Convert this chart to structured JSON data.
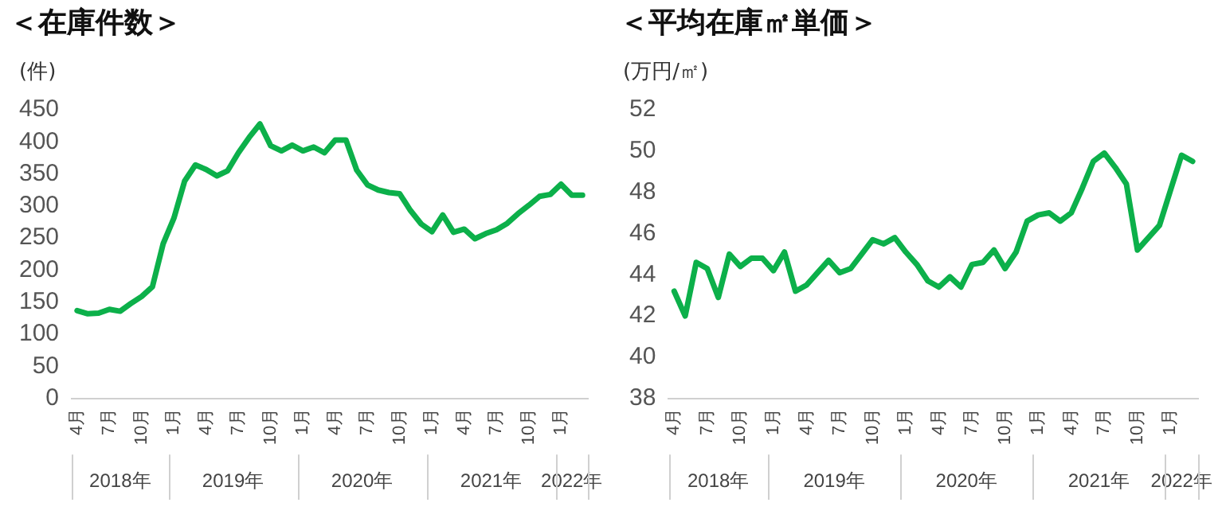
{
  "chart_data": [
    {
      "type": "line",
      "title": "＜在庫件数＞",
      "ylabel": "(件)",
      "x": [
        "2018-04",
        "2018-05",
        "2018-06",
        "2018-07",
        "2018-08",
        "2018-09",
        "2018-10",
        "2018-11",
        "2018-12",
        "2019-01",
        "2019-02",
        "2019-03",
        "2019-04",
        "2019-05",
        "2019-06",
        "2019-07",
        "2019-08",
        "2019-09",
        "2019-10",
        "2019-11",
        "2019-12",
        "2020-01",
        "2020-02",
        "2020-03",
        "2020-04",
        "2020-05",
        "2020-06",
        "2020-07",
        "2020-08",
        "2020-09",
        "2020-10",
        "2020-11",
        "2020-12",
        "2021-01",
        "2021-02",
        "2021-03",
        "2021-04",
        "2021-05",
        "2021-06",
        "2021-07",
        "2021-08",
        "2021-09",
        "2021-10",
        "2021-11",
        "2021-12",
        "2022-01",
        "2022-02",
        "2022-03"
      ],
      "series": [
        {
          "color": "#0cb04a",
          "values": [
            137,
            132,
            133,
            139,
            136,
            148,
            159,
            174,
            241,
            281,
            339,
            364,
            357,
            347,
            355,
            383,
            407,
            428,
            394,
            386,
            395,
            386,
            392,
            383,
            403,
            403,
            356,
            333,
            325,
            321,
            319,
            293,
            272,
            260,
            286,
            259,
            264,
            249,
            257,
            263,
            273,
            288,
            301,
            315,
            318,
            334,
            317,
            317
          ]
        }
      ],
      "ylim": [
        0,
        450
      ],
      "yticks": [
        0,
        50,
        100,
        150,
        200,
        250,
        300,
        350,
        400,
        450
      ],
      "line_style": "solid",
      "marker": "none",
      "xlim": [
        "2018-03-16",
        "2022-03-16"
      ],
      "xticks": [
        {
          "value": "2018-04",
          "label": "4月"
        },
        {
          "value": "2018-07",
          "label": "7月"
        },
        {
          "value": "2018-10",
          "label": "10月"
        },
        {
          "value": "2019-01",
          "label": "1月"
        },
        {
          "value": "2019-04",
          "label": "4月"
        },
        {
          "value": "2019-07",
          "label": "7月"
        },
        {
          "value": "2019-10",
          "label": "10月"
        },
        {
          "value": "2020-01",
          "label": "1月"
        },
        {
          "value": "2020-04",
          "label": "4月"
        },
        {
          "value": "2020-07",
          "label": "7月"
        },
        {
          "value": "2020-10",
          "label": "10月"
        },
        {
          "value": "2021-01",
          "label": "1月"
        },
        {
          "value": "2021-04",
          "label": "4月"
        },
        {
          "value": "2021-07",
          "label": "7月"
        },
        {
          "value": "2021-10",
          "label": "10月"
        },
        {
          "value": "2022-01",
          "label": "1月"
        }
      ],
      "x2lim": [
        "2018-03-16",
        "2022-03-16"
      ],
      "x2ticks": [
        {
          "value": "2018-08",
          "label": "2018年"
        },
        {
          "value": "2019-06-16",
          "label": "2019年"
        },
        {
          "value": "2020-06-16",
          "label": "2020年"
        },
        {
          "value": "2021-06-16",
          "label": "2021年"
        },
        {
          "value": "2022-02",
          "label": "2022年"
        }
      ]
    },
    {
      "type": "line",
      "title": "＜平均在庫㎡単価＞",
      "ylabel": "(万円/㎡)",
      "x": [
        "2018-04",
        "2018-05",
        "2018-06",
        "2018-07",
        "2018-08",
        "2018-09",
        "2018-10",
        "2018-11",
        "2018-12",
        "2019-01",
        "2019-02",
        "2019-03",
        "2019-04",
        "2019-05",
        "2019-06",
        "2019-07",
        "2019-08",
        "2019-09",
        "2019-10",
        "2019-11",
        "2019-12",
        "2020-01",
        "2020-02",
        "2020-03",
        "2020-04",
        "2020-05",
        "2020-06",
        "2020-07",
        "2020-08",
        "2020-09",
        "2020-10",
        "2020-11",
        "2020-12",
        "2021-01",
        "2021-02",
        "2021-03",
        "2021-04",
        "2021-05",
        "2021-06",
        "2021-07",
        "2021-08",
        "2021-09",
        "2021-10",
        "2021-11",
        "2021-12",
        "2022-01",
        "2022-02",
        "2022-03"
      ],
      "series": [
        {
          "color": "#0cb04a",
          "values": [
            43.2,
            42.0,
            44.6,
            44.3,
            42.9,
            45.0,
            44.4,
            44.8,
            44.8,
            44.2,
            45.1,
            43.2,
            43.5,
            44.1,
            44.7,
            44.1,
            44.3,
            45.0,
            45.7,
            45.5,
            45.8,
            45.1,
            44.5,
            43.7,
            43.4,
            43.9,
            43.4,
            44.5,
            44.6,
            45.2,
            44.3,
            45.1,
            46.6,
            46.9,
            47.0,
            46.6,
            47.0,
            48.2,
            49.5,
            49.9,
            49.2,
            48.4,
            45.2,
            45.8,
            46.4,
            48.1,
            49.8,
            49.5
          ]
        }
      ],
      "ylim": [
        38,
        52
      ],
      "yticks": [
        38,
        40,
        42,
        44,
        46,
        48,
        50,
        52
      ],
      "line_style": "solid",
      "marker": "none",
      "xlim": [
        "2018-03-16",
        "2022-03-16"
      ],
      "xticks": [
        {
          "value": "2018-04",
          "label": "4月"
        },
        {
          "value": "2018-07",
          "label": "7月"
        },
        {
          "value": "2018-10",
          "label": "10月"
        },
        {
          "value": "2019-01",
          "label": "1月"
        },
        {
          "value": "2019-04",
          "label": "4月"
        },
        {
          "value": "2019-07",
          "label": "7月"
        },
        {
          "value": "2019-10",
          "label": "10月"
        },
        {
          "value": "2020-01",
          "label": "1月"
        },
        {
          "value": "2020-04",
          "label": "4月"
        },
        {
          "value": "2020-07",
          "label": "7月"
        },
        {
          "value": "2020-10",
          "label": "10月"
        },
        {
          "value": "2021-01",
          "label": "1月"
        },
        {
          "value": "2021-04",
          "label": "4月"
        },
        {
          "value": "2021-07",
          "label": "7月"
        },
        {
          "value": "2021-10",
          "label": "10月"
        },
        {
          "value": "2022-01",
          "label": "1月"
        }
      ],
      "x2lim": [
        "2018-03-16",
        "2022-03-16"
      ],
      "x2ticks": [
        {
          "value": "2018-08",
          "label": "2018年"
        },
        {
          "value": "2019-06-16",
          "label": "2019年"
        },
        {
          "value": "2020-06-16",
          "label": "2020年"
        },
        {
          "value": "2021-06-16",
          "label": "2021年"
        },
        {
          "value": "2022-02",
          "label": "2022年"
        }
      ]
    }
  ]
}
